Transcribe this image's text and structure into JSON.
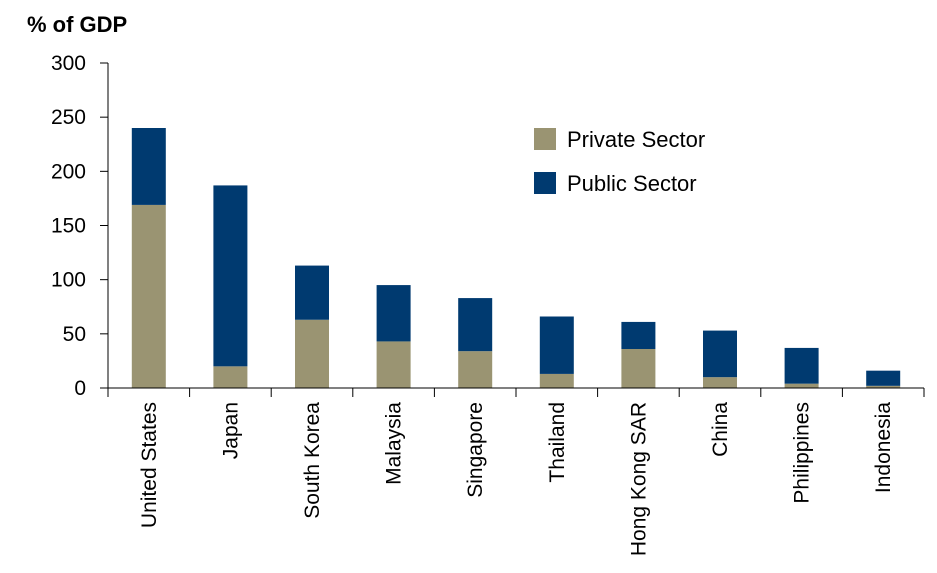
{
  "chart_data": {
    "type": "bar",
    "stacked": true,
    "ylabel": "% of GDP",
    "ylim": [
      0,
      300
    ],
    "yticks": [
      0,
      50,
      100,
      150,
      200,
      250,
      300
    ],
    "categories": [
      "United States",
      "Japan",
      "South Korea",
      "Malaysia",
      "Singapore",
      "Thailand",
      "Hong Kong SAR",
      "China",
      "Philippines",
      "Indonesia"
    ],
    "series": [
      {
        "name": "Private Sector",
        "color": "#9a9472",
        "values": [
          169,
          20,
          63,
          43,
          34,
          13,
          36,
          10,
          4,
          2
        ]
      },
      {
        "name": "Public Sector",
        "color": "#003a70",
        "values": [
          71,
          167,
          50,
          52,
          49,
          53,
          25,
          43,
          33,
          14
        ]
      }
    ],
    "grid": false,
    "legend_position": "top-right"
  }
}
